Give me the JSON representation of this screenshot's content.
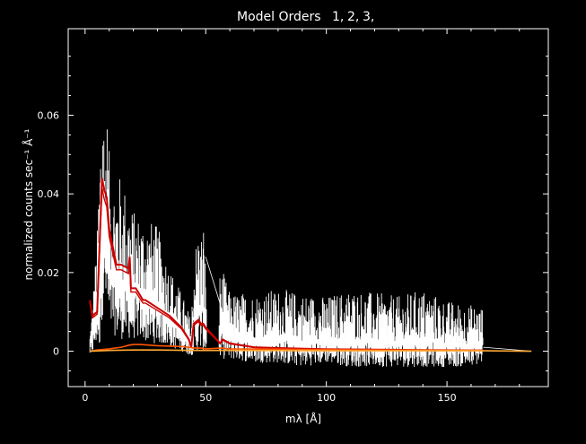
{
  "chart_data": {
    "type": "line",
    "title": "Model Orders",
    "legend": [
      {
        "label": "1,",
        "color": "#cc0000"
      },
      {
        "label": "2,",
        "color": "#ff5500"
      },
      {
        "label": "3,",
        "color": "#ffaa33"
      }
    ],
    "xlabel": "mλ [Å]",
    "ylabel": "normalized counts sec⁻¹ Å⁻¹",
    "xlim": [
      -7,
      192
    ],
    "ylim": [
      -0.009,
      0.082
    ],
    "xticks": [
      0,
      50,
      100,
      150
    ],
    "xtick_labels": [
      "0",
      "50",
      "100",
      "150"
    ],
    "yticks": [
      0,
      0.02,
      0.04,
      0.06
    ],
    "ytick_labels": [
      "0",
      "0.02",
      "0.04",
      "0.06"
    ],
    "data_envelope": {
      "name": "data",
      "color": "#ffffff",
      "x": [
        2,
        3,
        5,
        6,
        7,
        8,
        9,
        10,
        12,
        15,
        18,
        20,
        23,
        26,
        30,
        35,
        40,
        43,
        44,
        45,
        47,
        48,
        49,
        50,
        51,
        53,
        55,
        56,
        58,
        60,
        70,
        80,
        90,
        100,
        110,
        120,
        130,
        140,
        150,
        160,
        165
      ],
      "ymax": [
        0.005,
        0.013,
        0.03,
        0.054,
        0.076,
        0.06,
        0.063,
        0.051,
        0.045,
        0.045,
        0.04,
        0.036,
        0.035,
        0.034,
        0.032,
        0.022,
        0.015,
        0.01,
        0.008,
        0.025,
        0.032,
        0.03,
        0.035,
        0.022,
        0.005,
        0.003,
        0.003,
        0.022,
        0.019,
        0.015,
        0.015,
        0.016,
        0.015,
        0.014,
        0.016,
        0.015,
        0.014,
        0.016,
        0.013,
        0.012,
        0.012
      ],
      "ymin": [
        -0.001,
        -0.001,
        0.002,
        0.0,
        0.008,
        0.012,
        0.01,
        0.005,
        0.004,
        0.003,
        0.003,
        0.003,
        0.003,
        0.002,
        0.002,
        0.001,
        0.0,
        -0.001,
        -0.001,
        -0.001,
        0.0,
        0.0,
        0.0,
        -0.001,
        0.0,
        0.0,
        0.0,
        -0.002,
        -0.002,
        -0.002,
        -0.003,
        -0.003,
        -0.004,
        -0.003,
        -0.004,
        -0.004,
        -0.004,
        -0.004,
        -0.004,
        -0.004,
        -0.003
      ]
    },
    "series": [
      {
        "name": "1,",
        "color": "#cc0000",
        "x": [
          2,
          3,
          5,
          7,
          8,
          9,
          10,
          12,
          13,
          14,
          15,
          18,
          18.5,
          19,
          21,
          23,
          24,
          25,
          30,
          35,
          40,
          43,
          44,
          45,
          47,
          48,
          49,
          50,
          56,
          57,
          60,
          70,
          80,
          100,
          120,
          140,
          160,
          165
        ],
        "y": [
          0.013,
          0.009,
          0.01,
          0.044,
          0.041,
          0.039,
          0.031,
          0.025,
          0.022,
          0.022,
          0.022,
          0.021,
          0.024,
          0.016,
          0.016,
          0.014,
          0.013,
          0.013,
          0.011,
          0.009,
          0.006,
          0.003,
          0.001,
          0.007,
          0.008,
          0.007,
          0.007,
          0.006,
          0.002,
          0.003,
          0.002,
          0.001,
          0.0008,
          0.0005,
          0.0004,
          0.0003,
          0.0002,
          0.0002
        ]
      },
      {
        "name": "2,",
        "color": "#ff5500",
        "x": [
          2,
          5,
          10,
          15,
          18,
          20,
          23,
          30,
          40,
          43,
          45,
          48,
          50,
          56,
          60,
          80,
          100,
          130,
          165
        ],
        "y": [
          0.0,
          0.0003,
          0.0006,
          0.001,
          0.0015,
          0.0017,
          0.0017,
          0.0014,
          0.0012,
          0.001,
          0.0008,
          0.0008,
          0.0006,
          0.0008,
          0.0006,
          0.0005,
          0.0004,
          0.0003,
          0.0002
        ]
      },
      {
        "name": "3,",
        "color": "#ffaa33",
        "x": [
          2,
          10,
          20,
          30,
          45,
          56,
          100,
          165,
          185
        ],
        "y": [
          0.0,
          0.0002,
          0.0003,
          0.0003,
          0.0002,
          0.0002,
          0.0001,
          0.0001,
          0.0
        ]
      }
    ]
  }
}
